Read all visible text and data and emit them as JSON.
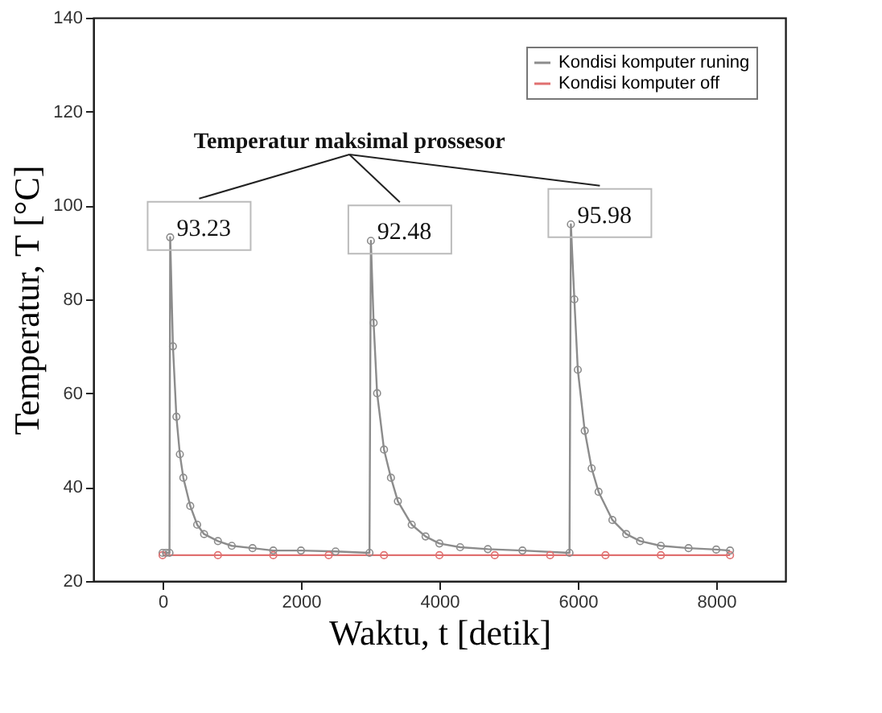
{
  "chart_data": {
    "type": "line",
    "xlabel": "Waktu, t [detik]",
    "ylabel": "Temperatur, T [°C]",
    "xlim": [
      -1000,
      9000
    ],
    "xticks": [
      0,
      2000,
      4000,
      6000,
      8000
    ],
    "ylim": [
      20,
      140
    ],
    "yticks": [
      20,
      40,
      60,
      80,
      100,
      120,
      140
    ],
    "legend": "top right",
    "grid": false,
    "marker": "circle",
    "line_style": "solid",
    "series": [
      {
        "name": "Kondisi komputer runing",
        "color": "#8c8c8c",
        "x": [
          0,
          50,
          100,
          110,
          150,
          200,
          250,
          300,
          400,
          500,
          600,
          800,
          1000,
          1300,
          1600,
          2000,
          2500,
          2990,
          3010,
          3050,
          3100,
          3200,
          3300,
          3400,
          3600,
          3800,
          4000,
          4300,
          4700,
          5200,
          5880,
          5900,
          5950,
          6000,
          6100,
          6200,
          6300,
          6500,
          6700,
          6900,
          7200,
          7600,
          8000,
          8200
        ],
        "values": [
          26,
          26,
          26,
          93.23,
          70,
          55,
          47,
          42,
          36,
          32,
          30,
          28.5,
          27.5,
          27,
          26.5,
          26.5,
          26.3,
          26,
          92.48,
          75,
          60,
          48,
          42,
          37,
          32,
          29.5,
          28,
          27.2,
          26.8,
          26.5,
          26,
          95.98,
          80,
          65,
          52,
          44,
          39,
          33,
          30,
          28.5,
          27.5,
          27,
          26.7,
          26.5
        ]
      },
      {
        "name": "Kondisi komputer off",
        "color": "#e07070",
        "x": [
          0,
          800,
          1600,
          2400,
          3200,
          4000,
          4800,
          5600,
          6400,
          7200,
          8200
        ],
        "values": [
          25.5,
          25.5,
          25.5,
          25.5,
          25.5,
          25.5,
          25.5,
          25.5,
          25.5,
          25.5,
          25.5
        ]
      }
    ],
    "annotations": [
      "Temperatur maksimal prossesor",
      {
        "text": "93.23",
        "x": 110,
        "y": 93.23
      },
      {
        "text": "92.48",
        "x": 3010,
        "y": 92.48
      },
      {
        "text": "95.98",
        "x": 5900,
        "y": 95.98
      }
    ]
  }
}
